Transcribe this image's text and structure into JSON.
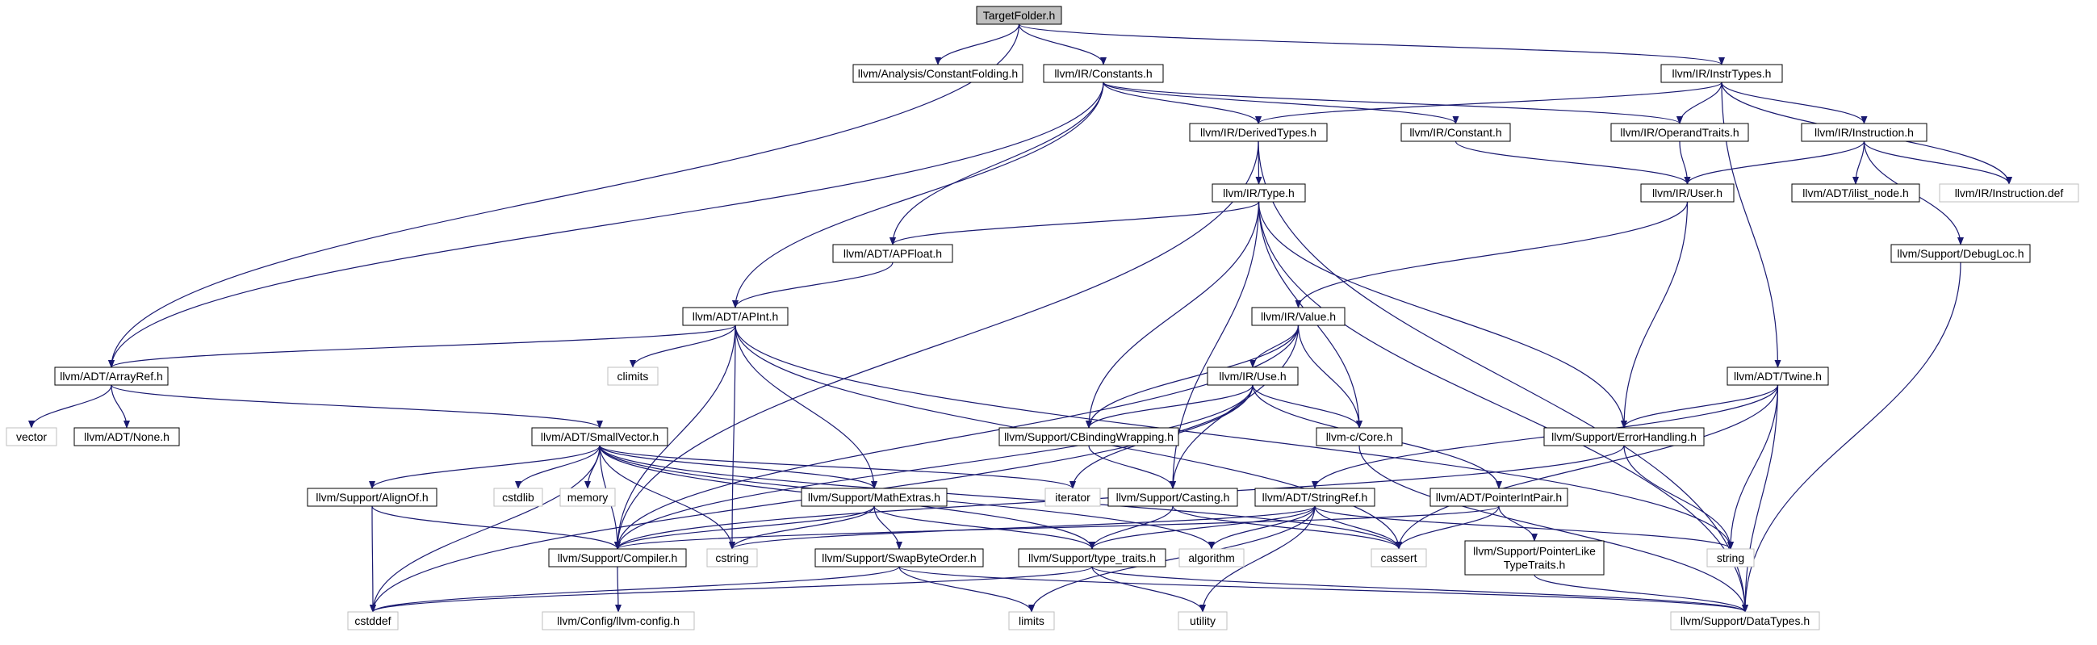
{
  "graph": {
    "nodes": [
      {
        "id": "TargetFolder.h",
        "label": "TargetFolder.h",
        "style": "root"
      },
      {
        "id": "llvm/Analysis/ConstantFolding.h",
        "label": "llvm/Analysis/ConstantFolding.h",
        "style": "normal"
      },
      {
        "id": "llvm/IR/Constants.h",
        "label": "llvm/IR/Constants.h",
        "style": "normal"
      },
      {
        "id": "llvm/IR/InstrTypes.h",
        "label": "llvm/IR/InstrTypes.h",
        "style": "normal"
      },
      {
        "id": "llvm/IR/DerivedTypes.h",
        "label": "llvm/IR/DerivedTypes.h",
        "style": "normal"
      },
      {
        "id": "llvm/IR/Constant.h",
        "label": "llvm/IR/Constant.h",
        "style": "normal"
      },
      {
        "id": "llvm/IR/OperandTraits.h",
        "label": "llvm/IR/OperandTraits.h",
        "style": "normal"
      },
      {
        "id": "llvm/IR/Instruction.h",
        "label": "llvm/IR/Instruction.h",
        "style": "normal"
      },
      {
        "id": "llvm/IR/Type.h",
        "label": "llvm/IR/Type.h",
        "style": "normal"
      },
      {
        "id": "llvm/IR/User.h",
        "label": "llvm/IR/User.h",
        "style": "normal"
      },
      {
        "id": "llvm/ADT/ilist_node.h",
        "label": "llvm/ADT/ilist_node.h",
        "style": "normal"
      },
      {
        "id": "llvm/IR/Instruction.def",
        "label": "llvm/IR/Instruction.def",
        "style": "external"
      },
      {
        "id": "llvm/ADT/APFloat.h",
        "label": "llvm/ADT/APFloat.h",
        "style": "normal"
      },
      {
        "id": "llvm/Support/DebugLoc.h",
        "label": "llvm/Support/DebugLoc.h",
        "style": "normal"
      },
      {
        "id": "llvm/ADT/APInt.h",
        "label": "llvm/ADT/APInt.h",
        "style": "normal"
      },
      {
        "id": "llvm/IR/Value.h",
        "label": "llvm/IR/Value.h",
        "style": "normal"
      },
      {
        "id": "climits",
        "label": "climits",
        "style": "external"
      },
      {
        "id": "llvm/ADT/ArrayRef.h",
        "label": "llvm/ADT/ArrayRef.h",
        "style": "normal"
      },
      {
        "id": "llvm/ADT/Twine.h",
        "label": "llvm/ADT/Twine.h",
        "style": "normal"
      },
      {
        "id": "llvm/IR/Use.h",
        "label": "llvm/IR/Use.h",
        "style": "normal"
      },
      {
        "id": "vector",
        "label": "vector",
        "style": "external"
      },
      {
        "id": "llvm/ADT/None.h",
        "label": "llvm/ADT/None.h",
        "style": "normal"
      },
      {
        "id": "llvm/ADT/SmallVector.h",
        "label": "llvm/ADT/SmallVector.h",
        "style": "normal"
      },
      {
        "id": "llvm/Support/CBindingWrapping.h",
        "label": "llvm/Support/CBindingWrapping.h",
        "style": "normal"
      },
      {
        "id": "llvm-c/Core.h",
        "label": "llvm-c/Core.h",
        "style": "normal"
      },
      {
        "id": "llvm/Support/ErrorHandling.h",
        "label": "llvm/Support/ErrorHandling.h",
        "style": "normal"
      },
      {
        "id": "llvm/Support/AlignOf.h",
        "label": "llvm/Support/AlignOf.h",
        "style": "normal"
      },
      {
        "id": "cstdlib",
        "label": "cstdlib",
        "style": "external"
      },
      {
        "id": "memory",
        "label": "memory",
        "style": "external"
      },
      {
        "id": "llvm/Support/MathExtras.h",
        "label": "llvm/Support/MathExtras.h",
        "style": "normal"
      },
      {
        "id": "iterator",
        "label": "iterator",
        "style": "external"
      },
      {
        "id": "llvm/Support/Casting.h",
        "label": "llvm/Support/Casting.h",
        "style": "normal"
      },
      {
        "id": "llvm/ADT/StringRef.h",
        "label": "llvm/ADT/StringRef.h",
        "style": "normal"
      },
      {
        "id": "llvm/ADT/PointerIntPair.h",
        "label": "llvm/ADT/PointerIntPair.h",
        "style": "normal"
      },
      {
        "id": "llvm/Support/Compiler.h",
        "label": "llvm/Support/Compiler.h",
        "style": "normal"
      },
      {
        "id": "cstring",
        "label": "cstring",
        "style": "external"
      },
      {
        "id": "llvm/Support/SwapByteOrder.h",
        "label": "llvm/Support/SwapByteOrder.h",
        "style": "normal"
      },
      {
        "id": "llvm/Support/type_traits.h",
        "label": "llvm/Support/type_traits.h",
        "style": "normal"
      },
      {
        "id": "algorithm",
        "label": "algorithm",
        "style": "external"
      },
      {
        "id": "cassert",
        "label": "cassert",
        "style": "external"
      },
      {
        "id": "llvm/Support/PointerLikeTypeTraits.h",
        "label": "llvm/Support/PointerLike\nTypeTraits.h",
        "style": "normal"
      },
      {
        "id": "string",
        "label": "string",
        "style": "external"
      },
      {
        "id": "cstddef",
        "label": "cstddef",
        "style": "external"
      },
      {
        "id": "llvm/Config/llvm-config.h",
        "label": "llvm/Config/llvm-config.h",
        "style": "external"
      },
      {
        "id": "limits",
        "label": "limits",
        "style": "external"
      },
      {
        "id": "utility",
        "label": "utility",
        "style": "external"
      },
      {
        "id": "llvm/Support/DataTypes.h",
        "label": "llvm/Support/DataTypes.h",
        "style": "external"
      }
    ],
    "edges": [
      [
        "TargetFolder.h",
        "llvm/Analysis/ConstantFolding.h"
      ],
      [
        "TargetFolder.h",
        "llvm/IR/Constants.h"
      ],
      [
        "TargetFolder.h",
        "llvm/IR/InstrTypes.h"
      ],
      [
        "TargetFolder.h",
        "llvm/ADT/ArrayRef.h"
      ],
      [
        "llvm/IR/Constants.h",
        "llvm/IR/DerivedTypes.h"
      ],
      [
        "llvm/IR/Constants.h",
        "llvm/IR/Constant.h"
      ],
      [
        "llvm/IR/Constants.h",
        "llvm/IR/OperandTraits.h"
      ],
      [
        "llvm/IR/Constants.h",
        "llvm/ADT/APFloat.h"
      ],
      [
        "llvm/IR/Constants.h",
        "llvm/ADT/APInt.h"
      ],
      [
        "llvm/IR/Constants.h",
        "llvm/ADT/ArrayRef.h"
      ],
      [
        "llvm/IR/InstrTypes.h",
        "llvm/IR/DerivedTypes.h"
      ],
      [
        "llvm/IR/InstrTypes.h",
        "llvm/IR/OperandTraits.h"
      ],
      [
        "llvm/IR/InstrTypes.h",
        "llvm/IR/Instruction.h"
      ],
      [
        "llvm/IR/InstrTypes.h",
        "llvm/IR/Instruction.def"
      ],
      [
        "llvm/IR/InstrTypes.h",
        "llvm/ADT/Twine.h"
      ],
      [
        "llvm/IR/DerivedTypes.h",
        "llvm/IR/Type.h"
      ],
      [
        "llvm/IR/DerivedTypes.h",
        "llvm/Support/Compiler.h"
      ],
      [
        "llvm/IR/DerivedTypes.h",
        "llvm/Support/DataTypes.h"
      ],
      [
        "llvm/IR/Constant.h",
        "llvm/IR/User.h"
      ],
      [
        "llvm/IR/OperandTraits.h",
        "llvm/IR/User.h"
      ],
      [
        "llvm/IR/Instruction.h",
        "llvm/IR/User.h"
      ],
      [
        "llvm/IR/Instruction.h",
        "llvm/ADT/ilist_node.h"
      ],
      [
        "llvm/IR/Instruction.h",
        "llvm/IR/Instruction.def"
      ],
      [
        "llvm/IR/Instruction.h",
        "llvm/Support/DebugLoc.h"
      ],
      [
        "llvm/IR/Type.h",
        "llvm/ADT/APFloat.h"
      ],
      [
        "llvm/IR/Type.h",
        "llvm/Support/CBindingWrapping.h"
      ],
      [
        "llvm/IR/Type.h",
        "llvm-c/Core.h"
      ],
      [
        "llvm/IR/Type.h",
        "llvm/Support/ErrorHandling.h"
      ],
      [
        "llvm/IR/Type.h",
        "llvm/Support/Casting.h"
      ],
      [
        "llvm/IR/Type.h",
        "llvm/Support/DataTypes.h"
      ],
      [
        "llvm/IR/User.h",
        "llvm/IR/Value.h"
      ],
      [
        "llvm/IR/User.h",
        "llvm/Support/ErrorHandling.h"
      ],
      [
        "llvm/ADT/APFloat.h",
        "llvm/ADT/APInt.h"
      ],
      [
        "llvm/Support/DebugLoc.h",
        "llvm/Support/DataTypes.h"
      ],
      [
        "llvm/ADT/APInt.h",
        "climits"
      ],
      [
        "llvm/ADT/APInt.h",
        "llvm/ADT/ArrayRef.h"
      ],
      [
        "llvm/ADT/APInt.h",
        "llvm/Support/MathExtras.h"
      ],
      [
        "llvm/ADT/APInt.h",
        "llvm/Support/Compiler.h"
      ],
      [
        "llvm/ADT/APInt.h",
        "cstring"
      ],
      [
        "llvm/ADT/APInt.h",
        "string"
      ],
      [
        "llvm/ADT/APInt.h",
        "cassert"
      ],
      [
        "llvm/IR/Value.h",
        "llvm/IR/Use.h"
      ],
      [
        "llvm/IR/Value.h",
        "llvm/Support/CBindingWrapping.h"
      ],
      [
        "llvm/IR/Value.h",
        "llvm-c/Core.h"
      ],
      [
        "llvm/IR/Value.h",
        "llvm/Support/Casting.h"
      ],
      [
        "llvm/IR/Value.h",
        "llvm/Support/Compiler.h"
      ],
      [
        "llvm/ADT/ArrayRef.h",
        "vector"
      ],
      [
        "llvm/ADT/ArrayRef.h",
        "llvm/ADT/None.h"
      ],
      [
        "llvm/ADT/ArrayRef.h",
        "llvm/ADT/SmallVector.h"
      ],
      [
        "llvm/ADT/Twine.h",
        "llvm/Support/ErrorHandling.h"
      ],
      [
        "llvm/ADT/Twine.h",
        "llvm/ADT/StringRef.h"
      ],
      [
        "llvm/ADT/Twine.h",
        "cassert"
      ],
      [
        "llvm/ADT/Twine.h",
        "string"
      ],
      [
        "llvm/ADT/Twine.h",
        "llvm/Support/DataTypes.h"
      ],
      [
        "llvm/IR/Use.h",
        "llvm/Support/CBindingWrapping.h"
      ],
      [
        "llvm/IR/Use.h",
        "llvm-c/Core.h"
      ],
      [
        "llvm/IR/Use.h",
        "llvm/ADT/PointerIntPair.h"
      ],
      [
        "llvm/IR/Use.h",
        "llvm/Support/Compiler.h"
      ],
      [
        "llvm/IR/Use.h",
        "iterator"
      ],
      [
        "llvm/IR/Use.h",
        "cstddef"
      ],
      [
        "llvm/ADT/SmallVector.h",
        "llvm/Support/AlignOf.h"
      ],
      [
        "llvm/ADT/SmallVector.h",
        "cstdlib"
      ],
      [
        "llvm/ADT/SmallVector.h",
        "memory"
      ],
      [
        "llvm/ADT/SmallVector.h",
        "llvm/Support/MathExtras.h"
      ],
      [
        "llvm/ADT/SmallVector.h",
        "iterator"
      ],
      [
        "llvm/ADT/SmallVector.h",
        "llvm/Support/Compiler.h"
      ],
      [
        "llvm/ADT/SmallVector.h",
        "cstring"
      ],
      [
        "llvm/ADT/SmallVector.h",
        "llvm/Support/type_traits.h"
      ],
      [
        "llvm/ADT/SmallVector.h",
        "algorithm"
      ],
      [
        "llvm/ADT/SmallVector.h",
        "cassert"
      ],
      [
        "llvm/ADT/SmallVector.h",
        "cstddef"
      ],
      [
        "llvm/Support/CBindingWrapping.h",
        "llvm/Support/Casting.h"
      ],
      [
        "llvm-c/Core.h",
        "llvm/Support/DataTypes.h"
      ],
      [
        "llvm/Support/ErrorHandling.h",
        "llvm/Support/Compiler.h"
      ],
      [
        "llvm/Support/ErrorHandling.h",
        "string"
      ],
      [
        "llvm/Support/AlignOf.h",
        "llvm/Support/Compiler.h"
      ],
      [
        "llvm/Support/AlignOf.h",
        "cstddef"
      ],
      [
        "llvm/Support/MathExtras.h",
        "llvm/Support/Compiler.h"
      ],
      [
        "llvm/Support/MathExtras.h",
        "llvm/Support/SwapByteOrder.h"
      ],
      [
        "llvm/Support/MathExtras.h",
        "llvm/Support/type_traits.h"
      ],
      [
        "llvm/Support/MathExtras.h",
        "cstring"
      ],
      [
        "llvm/Support/Casting.h",
        "llvm/Support/type_traits.h"
      ],
      [
        "llvm/Support/Casting.h",
        "cassert"
      ],
      [
        "llvm/ADT/StringRef.h",
        "llvm/Support/type_traits.h"
      ],
      [
        "llvm/ADT/StringRef.h",
        "algorithm"
      ],
      [
        "llvm/ADT/StringRef.h",
        "cassert"
      ],
      [
        "llvm/ADT/StringRef.h",
        "cstring"
      ],
      [
        "llvm/ADT/StringRef.h",
        "limits"
      ],
      [
        "llvm/ADT/StringRef.h",
        "string"
      ],
      [
        "llvm/ADT/StringRef.h",
        "utility"
      ],
      [
        "llvm/ADT/PointerIntPair.h",
        "llvm/Support/PointerLikeTypeTraits.h"
      ],
      [
        "llvm/ADT/PointerIntPair.h",
        "llvm/Support/Compiler.h"
      ],
      [
        "llvm/ADT/PointerIntPair.h",
        "cassert"
      ],
      [
        "llvm/Support/Compiler.h",
        "llvm/Config/llvm-config.h"
      ],
      [
        "llvm/Support/SwapByteOrder.h",
        "cstddef"
      ],
      [
        "llvm/Support/SwapByteOrder.h",
        "limits"
      ],
      [
        "llvm/Support/SwapByteOrder.h",
        "llvm/Support/DataTypes.h"
      ],
      [
        "llvm/Support/type_traits.h",
        "cstddef"
      ],
      [
        "llvm/Support/type_traits.h",
        "utility"
      ],
      [
        "llvm/Support/type_traits.h",
        "llvm/Support/DataTypes.h"
      ],
      [
        "llvm/Support/PointerLikeTypeTraits.h",
        "llvm/Support/DataTypes.h"
      ]
    ]
  },
  "colors": {
    "edge": "#191970",
    "node_border": "#000000",
    "external_border": "#bfbfbf",
    "root_fill": "#bfbfbf",
    "node_fill": "#ffffff",
    "text": "#000000"
  }
}
